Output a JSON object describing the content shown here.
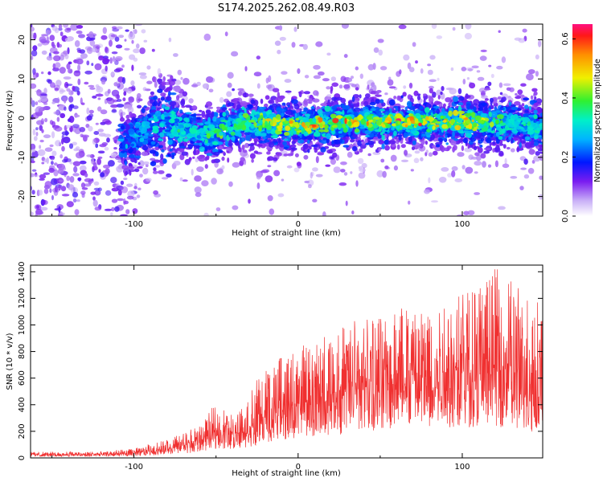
{
  "figure_title": "S174.2025.262.08.49.R03",
  "colors": {
    "snr_line": "#f03030",
    "axes": "#000000",
    "background": "#ffffff"
  },
  "chart_data": [
    {
      "type": "heatmap",
      "title": "",
      "xlabel": "Height of straight line (km)",
      "ylabel": "Frequency (Hz)",
      "xlim": [
        -163,
        149
      ],
      "ylim": [
        -25,
        24
      ],
      "xticks": [
        -100,
        0,
        100
      ],
      "yticks": [
        -20,
        -10,
        0,
        10,
        20
      ],
      "colorbar": {
        "label": "Normalized spectral amplitude",
        "range": [
          0.0,
          0.65
        ],
        "ticks": [
          0.0,
          0.2,
          0.4,
          0.6
        ],
        "tick_labels": [
          "0.0",
          "0.2",
          "0.4",
          "0.6"
        ]
      },
      "ridge": {
        "description_points_x": [
          -105,
          -80,
          -60,
          -30,
          0,
          40,
          80,
          120,
          149
        ],
        "center_freq": [
          -6,
          -1,
          -4,
          -1,
          -2,
          -1,
          -1,
          -1,
          -2
        ],
        "peak_amplitude": [
          0.25,
          0.3,
          0.35,
          0.4,
          0.55,
          0.55,
          0.6,
          0.4,
          0.3
        ]
      }
    },
    {
      "type": "line",
      "title": "",
      "xlabel": "Height of straight line (km)",
      "ylabel": "SNR (10 * v/v)",
      "xlim": [
        -163,
        149
      ],
      "ylim": [
        0,
        1450
      ],
      "xticks": [
        -100,
        0,
        100
      ],
      "yticks": [
        0,
        200,
        400,
        600,
        800,
        1000,
        1200,
        1400
      ],
      "series": [
        {
          "name": "SNR",
          "envelope_x": [
            -163,
            -120,
            -100,
            -80,
            -60,
            -50,
            -40,
            -30,
            -20,
            -10,
            0,
            20,
            40,
            60,
            80,
            100,
            120,
            140,
            149
          ],
          "envelope_mean": [
            25,
            25,
            35,
            70,
            120,
            200,
            190,
            220,
            330,
            380,
            400,
            480,
            560,
            620,
            640,
            650,
            680,
            560,
            500
          ],
          "envelope_peak": [
            45,
            50,
            70,
            140,
            240,
            420,
            330,
            520,
            680,
            760,
            830,
            960,
            1080,
            1180,
            1200,
            1260,
            1440,
            1260,
            1220
          ]
        }
      ]
    }
  ]
}
